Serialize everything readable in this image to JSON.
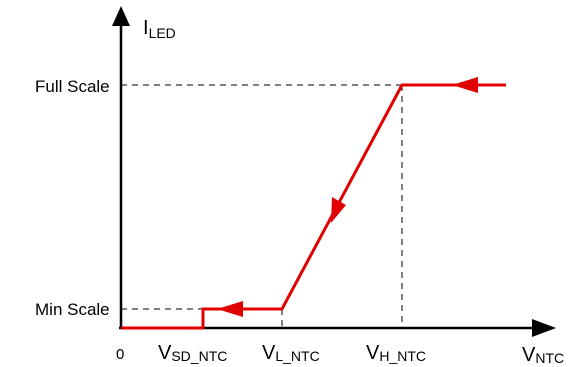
{
  "diagram": {
    "y_axis_label": {
      "main": "I",
      "sub": "LED"
    },
    "x_axis_label": {
      "main": "V",
      "sub": "NTC"
    },
    "origin_label": "0",
    "y_levels": [
      {
        "id": "full",
        "label": "Full Scale"
      },
      {
        "id": "min",
        "label": "Min Scale"
      }
    ],
    "x_thresholds": [
      {
        "id": "sd",
        "main": "V",
        "sub": "SD_NTC"
      },
      {
        "id": "l",
        "main": "V",
        "sub": "L_NTC"
      },
      {
        "id": "h",
        "main": "V",
        "sub": "H_NTC"
      }
    ],
    "colors": {
      "curve": "#e00000",
      "axes": "#000000",
      "guides": "#000000"
    }
  }
}
